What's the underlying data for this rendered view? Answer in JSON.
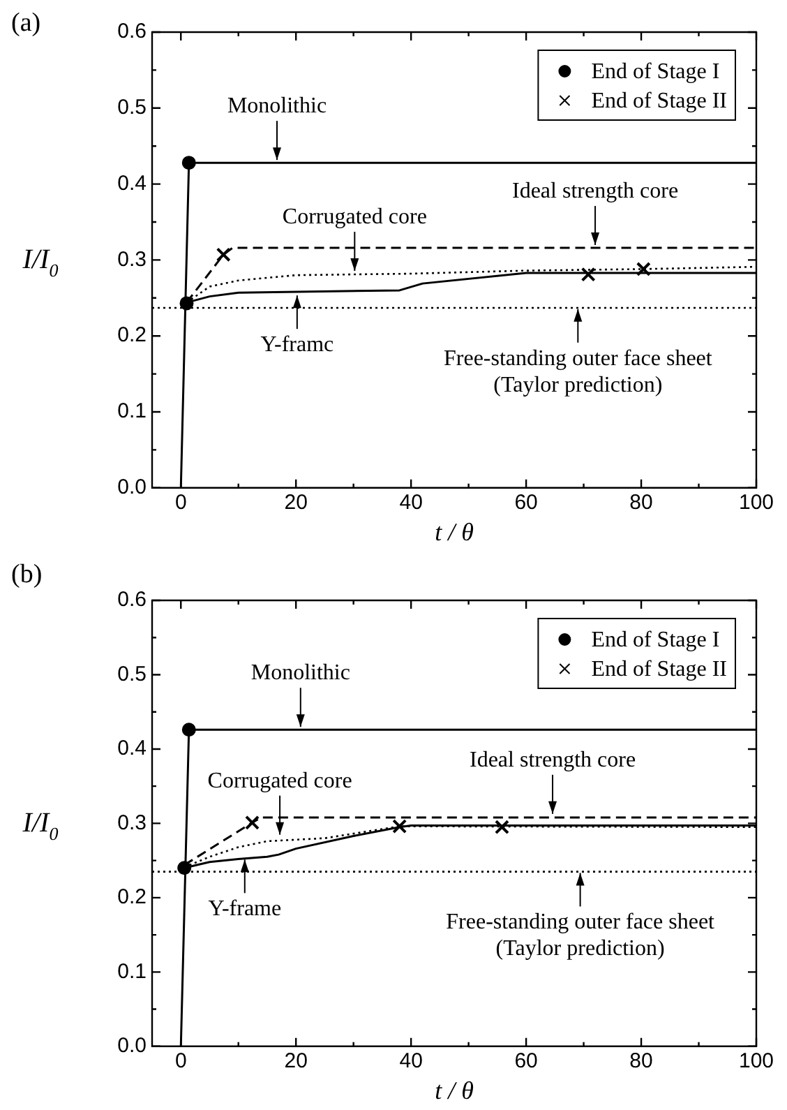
{
  "chart_data": [
    {
      "type": "line",
      "title": "(a)",
      "xlabel": "t / θ",
      "ylabel": "I/I$_{0}$",
      "xlim": [
        -5,
        100
      ],
      "xticks": [
        0,
        20,
        40,
        60,
        80,
        100
      ],
      "ylim": [
        0,
        0.6
      ],
      "yticks": [
        {
          "value": 0,
          "label": "0.0"
        },
        0.1,
        0.2,
        0.3,
        0.4,
        0.5,
        0.6
      ],
      "legend": "top right",
      "grid": false,
      "marker": "none",
      "series": [
        {
          "color": "#000000",
          "line_style": "solid",
          "x": [
            0,
            1.4,
            100
          ],
          "values": [
            0,
            0.428,
            0.428
          ]
        },
        {
          "color": "#000000",
          "line_style": "dashed",
          "x": [
            1,
            7.4,
            9,
            100
          ],
          "values": [
            0.244,
            0.307,
            0.316,
            0.316
          ]
        },
        {
          "color": "#000000",
          "line_style": "dotted",
          "x": [
            1,
            5,
            10,
            20,
            40,
            60,
            80,
            100
          ],
          "values": [
            0.244,
            0.265,
            0.273,
            0.28,
            0.282,
            0.286,
            0.288,
            0.291
          ]
        },
        {
          "color": "#000000",
          "line_style": "solid",
          "x": [
            1,
            5,
            10,
            38,
            42,
            60,
            100
          ],
          "values": [
            0.244,
            0.252,
            0.257,
            0.26,
            0.269,
            0.283,
            0.283
          ]
        },
        {
          "color": "#000000",
          "line_style": "dotted",
          "x": [
            -5,
            100
          ],
          "values": [
            0.237,
            0.237
          ]
        },
        {
          "type": "scatter",
          "name": "End of Stage I",
          "color": "#000000",
          "marker": "circle",
          "x": [
            1.4,
            1
          ],
          "values": [
            0.428,
            0.243
          ]
        },
        {
          "type": "scatter",
          "name": "End of Stage II",
          "color": "#000000",
          "marker": "cross",
          "x": [
            7.4,
            70.8,
            80.4
          ],
          "values": [
            0.307,
            0.281,
            0.288
          ]
        }
      ],
      "annotations": [
        {
          "text": "Monolithic",
          "x": 16.7,
          "y": 0.428
        },
        {
          "text": "Corrugated core",
          "x": 30.2,
          "y": 0.282
        },
        {
          "text": "Ideal strength core",
          "x": 72,
          "y": 0.316
        },
        {
          "text": "Y-framc",
          "x": 20.2,
          "y": 0.257
        },
        {
          "text": "Free-standing outer face sheet (Taylor prediction)",
          "x": 69,
          "y": 0.239
        }
      ]
    },
    {
      "type": "line",
      "title": "(b)",
      "xlabel": "t / θ",
      "ylabel": "I/I$_{0}$",
      "xlim": [
        -5,
        100
      ],
      "xticks": [
        0,
        20,
        40,
        60,
        80,
        100
      ],
      "ylim": [
        0,
        0.6
      ],
      "yticks": [
        {
          "value": 0,
          "label": "0.0"
        },
        0.1,
        0.2,
        0.3,
        0.4,
        0.5,
        0.6
      ],
      "legend": "top right",
      "grid": false,
      "marker": "none",
      "series": [
        {
          "color": "#000000",
          "line_style": "solid",
          "x": [
            0,
            1.4,
            100
          ],
          "values": [
            0,
            0.426,
            0.426
          ]
        },
        {
          "color": "#000000",
          "line_style": "dashed",
          "x": [
            0.6,
            12.4,
            14,
            100
          ],
          "values": [
            0.244,
            0.301,
            0.308,
            0.308
          ]
        },
        {
          "color": "#000000",
          "line_style": "dotted",
          "x": [
            0.6,
            5,
            10,
            15,
            20,
            25,
            38,
            100
          ],
          "values": [
            0.241,
            0.255,
            0.268,
            0.276,
            0.278,
            0.28,
            0.296,
            0.295
          ]
        },
        {
          "color": "#000000",
          "line_style": "solid",
          "x": [
            0.6,
            5,
            10,
            15,
            17,
            20,
            30,
            38,
            40,
            100
          ],
          "values": [
            0.24,
            0.248,
            0.252,
            0.255,
            0.258,
            0.266,
            0.283,
            0.295,
            0.297,
            0.297
          ]
        },
        {
          "color": "#000000",
          "line_style": "dotted",
          "x": [
            -5,
            100
          ],
          "values": [
            0.235,
            0.235
          ]
        },
        {
          "type": "scatter",
          "name": "End of Stage I",
          "color": "#000000",
          "marker": "circle",
          "x": [
            1.4,
            0.6
          ],
          "values": [
            0.426,
            0.24
          ]
        },
        {
          "type": "scatter",
          "name": "End of Stage II",
          "color": "#000000",
          "marker": "cross",
          "x": [
            12.4,
            38,
            55.8
          ],
          "values": [
            0.301,
            0.296,
            0.295
          ]
        }
      ],
      "annotations": [
        {
          "text": "Monolithic",
          "x": 20.8,
          "y": 0.426
        },
        {
          "text": "Corrugated core",
          "x": 17.2,
          "y": 0.281
        },
        {
          "text": "Ideal strength core",
          "x": 64.6,
          "y": 0.309
        },
        {
          "text": "Y-frame",
          "x": 11.1,
          "y": 0.255
        },
        {
          "text": "Free-standing outer face sheet (Taylor prediction)",
          "x": 69.4,
          "y": 0.237
        }
      ]
    }
  ]
}
